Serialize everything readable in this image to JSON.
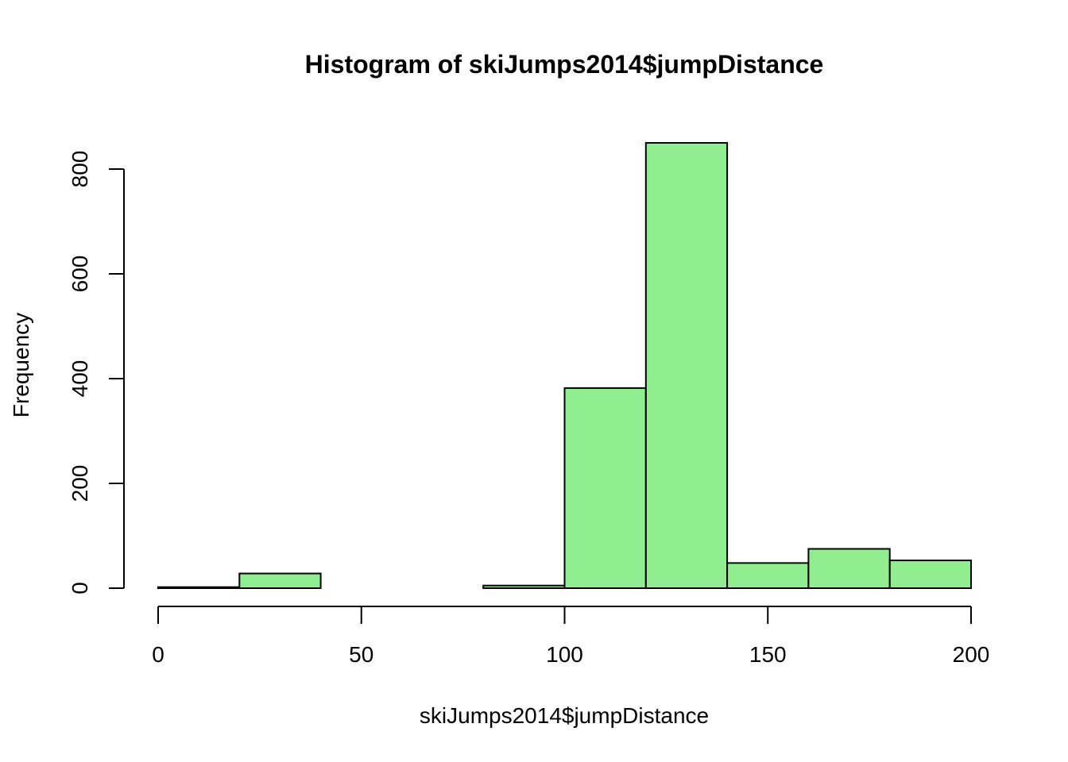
{
  "chart_data": {
    "type": "histogram",
    "title": "Histogram of skiJumps2014$jumpDistance",
    "xlabel": "skiJumps2014$jumpDistance",
    "ylabel": "Frequency",
    "bins": [
      {
        "from": 0,
        "to": 20,
        "count": 2
      },
      {
        "from": 20,
        "to": 40,
        "count": 28
      },
      {
        "from": 40,
        "to": 60,
        "count": 0
      },
      {
        "from": 60,
        "to": 80,
        "count": 0
      },
      {
        "from": 80,
        "to": 100,
        "count": 5
      },
      {
        "from": 100,
        "to": 120,
        "count": 382
      },
      {
        "from": 120,
        "to": 140,
        "count": 850
      },
      {
        "from": 140,
        "to": 160,
        "count": 48
      },
      {
        "from": 160,
        "to": 180,
        "count": 75
      },
      {
        "from": 180,
        "to": 200,
        "count": 53
      }
    ],
    "xlim": [
      0,
      200
    ],
    "ylim": [
      0,
      850
    ],
    "xticks": [
      "0",
      "50",
      "100",
      "150",
      "200"
    ],
    "yticks": [
      "0",
      "200",
      "400",
      "600",
      "800"
    ],
    "bar_color": "#90ee90",
    "edge_color": "#000000",
    "grid": false,
    "legend": "none"
  }
}
